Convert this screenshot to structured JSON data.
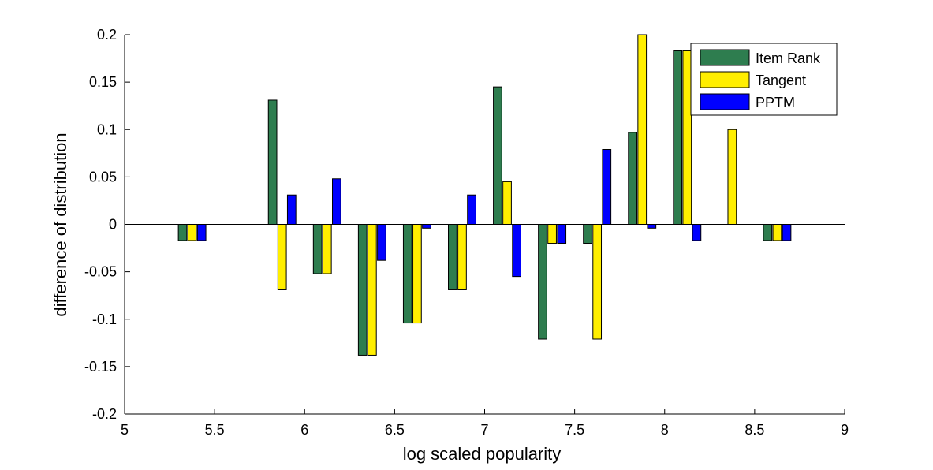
{
  "chart_data": {
    "type": "bar",
    "title": "",
    "xlabel": "log scaled popularity",
    "ylabel": "difference of distribution",
    "xlim": [
      5,
      9
    ],
    "ylim": [
      -0.2,
      0.2
    ],
    "x_ticks": [
      "5",
      "5.5",
      "6",
      "6.5",
      "7",
      "7.5",
      "8",
      "8.5",
      "9"
    ],
    "y_ticks": [
      "-0.2",
      "-0.15",
      "-0.1",
      "-0.05",
      "0",
      "0.05",
      "0.1",
      "0.15",
      "0.2"
    ],
    "x_tick_values": [
      5,
      5.5,
      6,
      6.5,
      7,
      7.5,
      8,
      8.5,
      9
    ],
    "y_tick_values": [
      -0.2,
      -0.15,
      -0.1,
      -0.05,
      0,
      0.05,
      0.1,
      0.15,
      0.2
    ],
    "categories": [
      5.375,
      5.875,
      6.125,
      6.375,
      6.625,
      6.875,
      7.125,
      7.375,
      7.625,
      7.875,
      8.125,
      8.375,
      8.625
    ],
    "grid": false,
    "legend_position": "top-right",
    "series": [
      {
        "name": "Item Rank",
        "color": "#2e7d4f",
        "values": [
          -0.017,
          0.131,
          -0.052,
          -0.138,
          -0.104,
          -0.069,
          0.145,
          -0.121,
          -0.02,
          0.097,
          0.183,
          0,
          -0.017
        ]
      },
      {
        "name": "Tangent",
        "color": "#ffee00",
        "values": [
          -0.017,
          -0.069,
          -0.052,
          -0.138,
          -0.104,
          -0.069,
          0.045,
          -0.02,
          -0.121,
          0.2,
          0.183,
          0.1,
          -0.017
        ]
      },
      {
        "name": "PPTM",
        "color": "#0000ff",
        "values": [
          -0.017,
          0.031,
          0.048,
          -0.038,
          -0.004,
          0.031,
          -0.055,
          -0.02,
          0.079,
          -0.004,
          -0.017,
          0,
          -0.017
        ]
      }
    ]
  }
}
